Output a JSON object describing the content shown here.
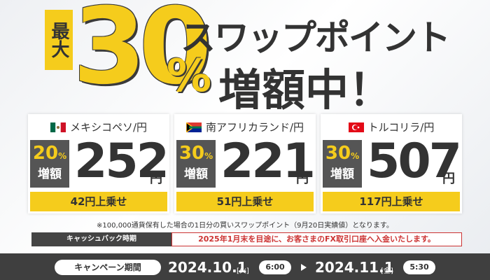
{
  "header": {
    "badge": "最大",
    "big_number": "30",
    "percent": "%",
    "line1": "スワップポイント",
    "line2": "増額中！"
  },
  "cards": [
    {
      "currency": "メキシコペソ/円",
      "rate": "20",
      "rate_unit": "%",
      "rate_label": "増額",
      "amount": "252",
      "amount_unit": "円",
      "bonus": "42円上乗せ"
    },
    {
      "currency": "南アフリカランド/円",
      "rate": "30",
      "rate_unit": "%",
      "rate_label": "増額",
      "amount": "221",
      "amount_unit": "円",
      "bonus": "51円上乗せ"
    },
    {
      "currency": "トルコリラ/円",
      "rate": "30",
      "rate_unit": "%",
      "rate_label": "増額",
      "amount": "507",
      "amount_unit": "円",
      "bonus": "117円上乗せ"
    }
  ],
  "note": "※100,000通貨保有した場合の1日分の買いスワップポイント（9月20日実績値）となります。",
  "cashback": {
    "label": "キャッシュバック時期",
    "text": "2025年1月末を目途に、お客さまのFX取引口座へ入金いたします。"
  },
  "campaign": {
    "label": "キャンペーン期間",
    "start_date": "2024.10.1",
    "start_day": "[火]",
    "start_time": "6:00",
    "end_date": "2024.11.1",
    "end_day": "[金]",
    "end_time": "5:30"
  }
}
